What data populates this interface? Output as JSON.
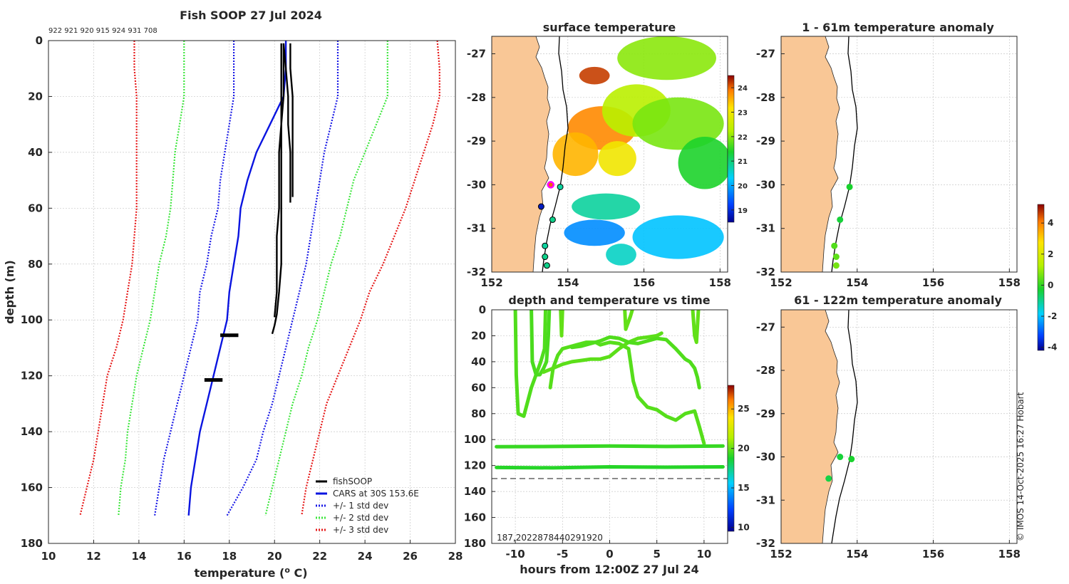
{
  "colors": {
    "land": "#f9c796",
    "obs": "#000000",
    "cars": "#0a14e0",
    "std1": "#1a1ae6",
    "std2": "#3ee63e",
    "std3": "#e61a1a",
    "grid": "#c8c8c8"
  },
  "footer": "© IMOS 14-Oct-2025 16:27 Hobart",
  "chart_data": [
    {
      "type": "line",
      "title": "Fish SOOP 27 Jul 2024",
      "profile_ids": "922 921 920 915 924 931 708",
      "xlabel_main": "temperature (",
      "xlabel_sup": "o",
      "xlabel_end": " C)",
      "ylabel": "depth (m)",
      "xlim": [
        10,
        28
      ],
      "ylim": [
        180,
        0
      ],
      "xticks": [
        10,
        12,
        14,
        16,
        18,
        20,
        22,
        24,
        26,
        28
      ],
      "yticks": [
        0,
        20,
        40,
        60,
        80,
        100,
        120,
        140,
        160,
        180
      ],
      "legend": [
        "fishSOOP",
        "CARS at 30S 153.6E",
        "+/- 1 std dev",
        "+/- 2 std dev",
        "+/- 3 std dev"
      ],
      "depth": [
        0,
        10,
        20,
        30,
        40,
        50,
        60,
        70,
        80,
        90,
        100,
        110,
        120,
        130,
        140,
        150,
        160,
        170
      ],
      "cars": [
        20.5,
        20.5,
        20.4,
        19.8,
        19.2,
        18.8,
        18.5,
        18.4,
        18.2,
        18.0,
        17.9,
        17.6,
        17.3,
        17.0,
        16.7,
        16.5,
        16.3,
        16.2
      ],
      "std1_left": [
        18.2,
        18.2,
        18.2,
        18.0,
        17.8,
        17.6,
        17.5,
        17.2,
        17.0,
        16.7,
        16.6,
        16.3,
        16.0,
        15.7,
        15.4,
        15.1,
        14.9,
        14.7
      ],
      "std1_right": [
        22.8,
        22.8,
        22.8,
        22.5,
        22.2,
        22.0,
        21.8,
        21.6,
        21.4,
        21.1,
        20.8,
        20.5,
        20.2,
        19.9,
        19.5,
        19.2,
        18.6,
        17.9
      ],
      "std2_left": [
        16.0,
        16.0,
        16.0,
        15.8,
        15.6,
        15.5,
        15.4,
        15.2,
        14.9,
        14.7,
        14.5,
        14.2,
        13.9,
        13.7,
        13.5,
        13.4,
        13.2,
        13.1
      ],
      "std2_right": [
        25.0,
        25.0,
        25.0,
        24.5,
        24.0,
        23.5,
        23.2,
        22.9,
        22.5,
        22.2,
        21.9,
        21.5,
        21.2,
        20.8,
        20.5,
        20.2,
        19.9,
        19.6
      ],
      "std3_left": [
        13.8,
        13.8,
        13.9,
        13.9,
        13.9,
        13.9,
        13.9,
        13.8,
        13.7,
        13.5,
        13.3,
        13.0,
        12.6,
        12.4,
        12.2,
        12.0,
        11.7,
        11.4
      ],
      "std3_right": [
        27.2,
        27.3,
        27.3,
        27.0,
        26.6,
        26.2,
        25.8,
        25.3,
        24.8,
        24.2,
        23.8,
        23.3,
        22.8,
        22.3,
        22.0,
        21.7,
        21.4,
        21.2
      ],
      "obs_casts": [
        {
          "depth": [
            1,
            10,
            20,
            30,
            40,
            50,
            58
          ],
          "temp": [
            20.4,
            20.5,
            20.6,
            20.6,
            20.7,
            20.7,
            20.7
          ]
        },
        {
          "depth": [
            1,
            10,
            20,
            30,
            40,
            50,
            56
          ],
          "temp": [
            20.7,
            20.7,
            20.8,
            20.8,
            20.8,
            20.8,
            20.8
          ]
        },
        {
          "depth": [
            1,
            10,
            20,
            30,
            40,
            50,
            60,
            70,
            80,
            90,
            98,
            102,
            105
          ],
          "temp": [
            20.4,
            20.4,
            20.4,
            20.3,
            20.3,
            20.3,
            20.3,
            20.3,
            20.3,
            20.2,
            20.1,
            20.0,
            19.9
          ]
        },
        {
          "depth": [
            1,
            10,
            20,
            30,
            40,
            50,
            60,
            70,
            80,
            90,
            99
          ],
          "temp": [
            20.3,
            20.3,
            20.3,
            20.3,
            20.2,
            20.2,
            20.2,
            20.1,
            20.1,
            20.1,
            20.0
          ]
        }
      ],
      "obs_blobs": [
        {
          "depth": 105.5,
          "t1": 17.6,
          "t2": 18.4
        },
        {
          "depth": 121.5,
          "t1": 16.9,
          "t2": 17.7
        }
      ]
    },
    {
      "type": "heatmap",
      "title": "surface temperature",
      "xlim": [
        152,
        158.2
      ],
      "ylim": [
        -32,
        -26.6
      ],
      "xticks": [
        152,
        154,
        156,
        158
      ],
      "yticks": [
        -27,
        -28,
        -29,
        -30,
        -31,
        -32
      ],
      "colorbar_ticks": [
        19,
        20,
        21,
        22,
        23,
        24
      ],
      "clim": [
        18.5,
        24.5
      ],
      "patches": [
        {
          "lon": 154.9,
          "lat": -28.7,
          "rlon": 0.9,
          "rlat": 0.5,
          "temp": 23.8
        },
        {
          "lon": 154.2,
          "lat": -29.3,
          "rlon": 0.6,
          "rlat": 0.5,
          "temp": 23.5
        },
        {
          "lon": 155.8,
          "lat": -28.3,
          "rlon": 0.9,
          "rlat": 0.6,
          "temp": 22.3
        },
        {
          "lon": 156.9,
          "lat": -28.6,
          "rlon": 1.2,
          "rlat": 0.6,
          "temp": 21.9
        },
        {
          "lon": 155.3,
          "lat": -29.4,
          "rlon": 0.5,
          "rlat": 0.4,
          "temp": 23.0
        },
        {
          "lon": 156.6,
          "lat": -27.1,
          "rlon": 1.3,
          "rlat": 0.5,
          "temp": 22.0
        },
        {
          "lon": 157.6,
          "lat": -29.5,
          "rlon": 0.7,
          "rlat": 0.6,
          "temp": 21.4
        },
        {
          "lon": 155.0,
          "lat": -30.5,
          "rlon": 0.9,
          "rlat": 0.3,
          "temp": 20.8
        },
        {
          "lon": 154.7,
          "lat": -31.1,
          "rlon": 0.8,
          "rlat": 0.3,
          "temp": 19.8
        },
        {
          "lon": 156.9,
          "lat": -31.2,
          "rlon": 1.2,
          "rlat": 0.5,
          "temp": 20.2
        },
        {
          "lon": 155.4,
          "lat": -31.6,
          "rlon": 0.4,
          "rlat": 0.25,
          "temp": 20.6
        },
        {
          "lon": 154.7,
          "lat": -27.5,
          "rlon": 0.4,
          "rlat": 0.2,
          "temp": 24.2
        }
      ],
      "obs_points": [
        {
          "lon": 153.55,
          "lat": -30.0,
          "temp": 24.0,
          "highlight": true
        },
        {
          "lon": 153.8,
          "lat": -30.05,
          "temp": 20.8
        },
        {
          "lon": 153.3,
          "lat": -30.5,
          "temp": 18.8
        },
        {
          "lon": 153.6,
          "lat": -30.8,
          "temp": 20.9
        },
        {
          "lon": 153.4,
          "lat": -31.4,
          "temp": 20.8
        },
        {
          "lon": 153.4,
          "lat": -31.65,
          "temp": 20.9
        },
        {
          "lon": 153.45,
          "lat": -31.85,
          "temp": 20.9
        }
      ]
    },
    {
      "type": "scatter",
      "title": "1 - 61m temperature anomaly",
      "xlim": [
        152,
        158.2
      ],
      "ylim": [
        -32,
        -26.6
      ],
      "xticks": [
        152,
        154,
        156,
        158
      ],
      "yticks": [
        -27,
        -28,
        -29,
        -30,
        -31,
        -32
      ],
      "points": [
        {
          "lon": 153.8,
          "lat": -30.05,
          "anom": 0.3
        },
        {
          "lon": 153.55,
          "lat": -30.8,
          "anom": 0.2
        },
        {
          "lon": 153.4,
          "lat": -31.4,
          "anom": 0.8
        },
        {
          "lon": 153.45,
          "lat": -31.65,
          "anom": 0.9
        },
        {
          "lon": 153.45,
          "lat": -31.85,
          "anom": 1.1
        }
      ]
    },
    {
      "type": "scatter",
      "title": "61 - 122m temperature anomaly",
      "xlim": [
        152,
        158.2
      ],
      "ylim": [
        -32,
        -26.6
      ],
      "xticks": [
        152,
        154,
        156,
        158
      ],
      "yticks": [
        -27,
        -28,
        -29,
        -30,
        -31,
        -32
      ],
      "points": [
        {
          "lon": 153.55,
          "lat": -30.0,
          "anom": 0.2
        },
        {
          "lon": 153.85,
          "lat": -30.05,
          "anom": 0.3
        },
        {
          "lon": 153.25,
          "lat": -30.5,
          "anom": 0.1
        }
      ]
    },
    {
      "type": "line",
      "title": "depth and temperature vs time",
      "xlabel": "hours from 12:00Z 27 Jul 24",
      "xlim": [
        -12.5,
        12.5
      ],
      "ylim": [
        180,
        0
      ],
      "xticks": [
        -10,
        -5,
        0,
        5,
        10
      ],
      "yticks": [
        0,
        20,
        40,
        60,
        80,
        100,
        120,
        140,
        160,
        180
      ],
      "colorbar_ticks": [
        10,
        15,
        20,
        25
      ],
      "clim": [
        9.5,
        28
      ],
      "ref_depth": 130,
      "series": [
        {
          "temp": 19.3,
          "hours": [
            -10.0,
            -9.9,
            -9.7,
            -9.1,
            -8.3,
            -7.3,
            -6.9,
            -6.8
          ],
          "depth": [
            0,
            50,
            80,
            82,
            60,
            40,
            30,
            0
          ]
        },
        {
          "temp": 19.2,
          "hours": [
            -8.3,
            -8.2,
            -7.8,
            -7.4,
            -7.0,
            -6.7,
            -6.5,
            -6.4
          ],
          "depth": [
            0,
            40,
            50,
            50,
            45,
            40,
            20,
            0
          ]
        },
        {
          "temp": 19.4,
          "hours": [
            -6.3,
            -6.0,
            -5.5,
            -5.0,
            -4.0,
            -3.5,
            -3.0,
            -2.5,
            -2.0,
            -1.5,
            -1.0,
            0.0,
            1.0,
            2.0,
            2.5,
            3.0,
            4.0,
            5.0,
            6.0,
            7.0,
            8.0,
            9.0,
            9.5,
            10.0
          ],
          "depth": [
            60,
            45,
            35,
            30,
            28,
            27,
            26,
            25,
            25,
            25,
            27,
            25,
            26,
            30,
            55,
            67,
            75,
            77,
            82,
            85,
            80,
            78,
            90,
            103
          ]
        },
        {
          "temp": 19.5,
          "hours": [
            -7.0,
            -6.0,
            -5.0,
            -4.0,
            -3.0,
            -2.0,
            -1.0,
            0.0,
            1.0,
            2.0,
            3.0,
            4.0,
            5.0,
            5.5
          ],
          "depth": [
            48,
            45,
            42,
            40,
            39,
            38,
            38,
            36,
            30,
            25,
            22,
            21,
            20,
            18
          ]
        },
        {
          "temp": 19.3,
          "hours": [
            -4.0,
            -3.0,
            -2.0,
            -1.0,
            0.0,
            1.0,
            2.0,
            3.0,
            4.0,
            5.0,
            6.0,
            7.0,
            8.0,
            8.5,
            9.0,
            9.3,
            9.5
          ],
          "depth": [
            29,
            28,
            26,
            24,
            21,
            22,
            25,
            26,
            24,
            22,
            23,
            30,
            38,
            40,
            45,
            52,
            60
          ]
        },
        {
          "temp": 19.6,
          "hours": [
            -5.2,
            -5.1,
            -5.0
          ],
          "depth": [
            0,
            20,
            0
          ]
        },
        {
          "temp": 19.6,
          "hours": [
            1.6,
            1.7,
            2.2,
            2.4
          ],
          "depth": [
            0,
            15,
            5,
            0
          ]
        },
        {
          "temp": 19.6,
          "hours": [
            8.8,
            9.0,
            9.2,
            9.4
          ],
          "depth": [
            0,
            20,
            25,
            0
          ]
        },
        {
          "temp": 18.9,
          "hours": [
            -12.0,
            -6.0,
            0.0,
            6.0,
            12.0
          ],
          "depth": [
            105.5,
            105.3,
            105.0,
            105.3,
            105.0
          ]
        },
        {
          "temp": 18.6,
          "hours": [
            -12.0,
            -6.0,
            0.0,
            6.0,
            12.0
          ],
          "depth": [
            121.5,
            121.8,
            121.0,
            121.3,
            121.0
          ]
        }
      ],
      "bottom_labels": "187,2022878440291920"
    },
    {
      "type": "colorbar",
      "title": "anomaly colorbar",
      "clim": [
        -4.2,
        5.2
      ],
      "ticks": [
        -4,
        -2,
        0,
        2,
        4
      ]
    }
  ]
}
